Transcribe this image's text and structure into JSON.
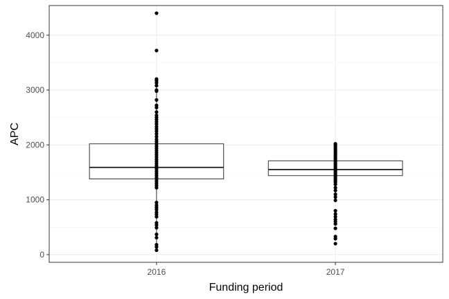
{
  "chart_data": {
    "type": "box",
    "xlabel": "Funding period",
    "ylabel": "APC",
    "categories": [
      "2016",
      "2017"
    ],
    "ylim": [
      -140,
      4540
    ],
    "y_ticks": [
      0,
      1000,
      2000,
      3000,
      4000
    ],
    "grid": true,
    "boxes": [
      {
        "category": "2016",
        "lower_whisker": 80,
        "q1": 1380,
        "median": 1590,
        "q3": 2020,
        "upper_whisker": 3080
      },
      {
        "category": "2017",
        "lower_whisker": 990,
        "q1": 1440,
        "median": 1550,
        "q3": 1710,
        "upper_whisker": 2020
      }
    ],
    "points": [
      {
        "category": "2016",
        "values": [
          4400,
          3720,
          3200,
          3170,
          3130,
          3080,
          3000,
          2980,
          2820,
          2720,
          2680,
          2600,
          2540,
          2500,
          2460,
          2420,
          2380,
          2330,
          2290,
          2250,
          2200,
          2150,
          2100,
          2060,
          2020,
          1980,
          1940,
          1900,
          1860,
          1820,
          1780,
          1740,
          1700,
          1660,
          1620,
          1590,
          1560,
          1520,
          1480,
          1440,
          1400,
          1380,
          1340,
          1300,
          1260,
          1220,
          950,
          900,
          860,
          820,
          770,
          730,
          690,
          580,
          540,
          490,
          370,
          310,
          180,
          140,
          80
        ]
      },
      {
        "category": "2017",
        "values": [
          2020,
          1990,
          1960,
          1930,
          1900,
          1870,
          1840,
          1810,
          1780,
          1750,
          1720,
          1690,
          1660,
          1630,
          1600,
          1570,
          1550,
          1530,
          1500,
          1470,
          1440,
          1410,
          1380,
          1350,
          1320,
          1280,
          1220,
          1170,
          1100,
          1050,
          990,
          800,
          740,
          690,
          640,
          600,
          560,
          480,
          330,
          290,
          200
        ]
      }
    ]
  }
}
